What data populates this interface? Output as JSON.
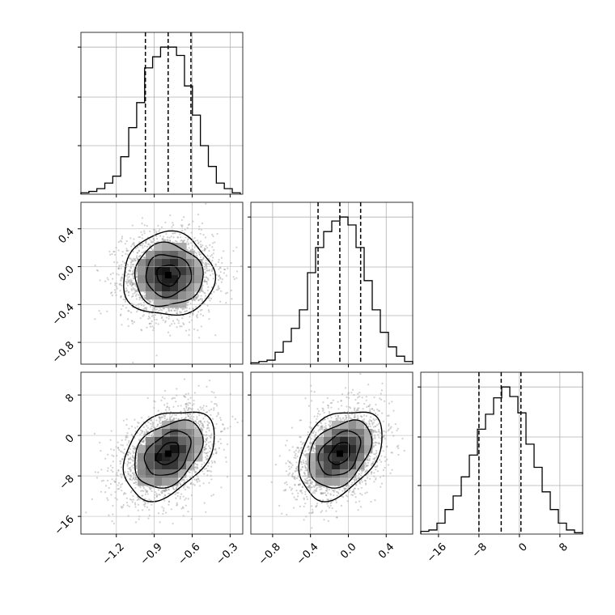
{
  "colors": {
    "background": "#ffffff",
    "frame": "#000000",
    "grid": "#b0b0b0",
    "scatter": "#9a9a9a",
    "contour": "#000000",
    "quantile_line": "#000000",
    "density_scale": [
      "#ffffff",
      "#000000"
    ]
  },
  "chart_data": {
    "type": "corner",
    "grid": true,
    "parameters": [
      {
        "range": [
          -1.48,
          -0.2
        ],
        "ticks": [
          -1.2,
          -0.9,
          -0.6,
          -0.3
        ],
        "tick_labels": [
          "−1.2",
          "−0.9",
          "−0.6",
          "−0.3"
        ],
        "quantiles": [
          -0.97,
          -0.79,
          -0.61
        ],
        "histogram": {
          "edges": [
            -1.48,
            -1.417,
            -1.354,
            -1.291,
            -1.228,
            -1.165,
            -1.102,
            -1.039,
            -0.976,
            -0.913,
            -0.85,
            -0.787,
            -0.724,
            -0.661,
            -0.598,
            -0.535,
            -0.472,
            -0.409,
            -0.346,
            -0.283,
            -0.22
          ],
          "counts": [
            1,
            2,
            4,
            8,
            13,
            27,
            48,
            66,
            91,
            99,
            106,
            106,
            100,
            78,
            57,
            35,
            20,
            8,
            4,
            1
          ]
        }
      },
      {
        "range": [
          -1.03,
          0.68
        ],
        "ticks": [
          -0.8,
          -0.4,
          0.0,
          0.4
        ],
        "tick_labels": [
          "−0.8",
          "−0.4",
          "0.0",
          "0.4"
        ],
        "quantiles": [
          -0.32,
          -0.09,
          0.13
        ],
        "histogram": {
          "edges": [
            -1.03,
            -0.9445,
            -0.859,
            -0.7735,
            -0.688,
            -0.6025,
            -0.517,
            -0.4315,
            -0.346,
            -0.2605,
            -0.175,
            -0.0895,
            -0.004,
            0.0815,
            0.167,
            0.2525,
            0.338,
            0.4235,
            0.509,
            0.5945,
            0.68
          ],
          "counts": [
            1,
            2,
            3,
            9,
            17,
            27,
            41,
            69,
            88,
            100,
            108,
            111,
            105,
            88,
            63,
            41,
            24,
            13,
            6,
            2
          ]
        }
      },
      {
        "range": [
          -19.5,
          12.5
        ],
        "ticks": [
          -16,
          -8,
          0,
          8
        ],
        "tick_labels": [
          "−16",
          "−8",
          "0",
          "8"
        ],
        "quantiles": [
          -8.0,
          -3.6,
          0.3
        ],
        "histogram": {
          "edges": [
            -19.5,
            -17.9,
            -16.3,
            -14.7,
            -13.1,
            -11.5,
            -9.9,
            -8.3,
            -6.7,
            -5.1,
            -3.5,
            -1.9,
            -0.3,
            1.3,
            2.9,
            4.5,
            6.1,
            7.7,
            9.3,
            10.9,
            12.5
          ],
          "counts": [
            2,
            3,
            8,
            18,
            28,
            42,
            58,
            77,
            88,
            100,
            108,
            101,
            89,
            66,
            49,
            31,
            18,
            8,
            3,
            1
          ]
        }
      }
    ],
    "pairs": [
      {
        "x_param": 0,
        "y_param": 1,
        "center": [
          -0.79,
          -0.09
        ],
        "sd": [
          0.18,
          0.22
        ],
        "rho": 0.0,
        "n_points": 2600
      },
      {
        "x_param": 0,
        "y_param": 2,
        "center": [
          -0.79,
          -3.6
        ],
        "sd": [
          0.18,
          4.4
        ],
        "rho": 0.35,
        "n_points": 2600
      },
      {
        "x_param": 1,
        "y_param": 2,
        "center": [
          -0.09,
          -3.6
        ],
        "sd": [
          0.22,
          4.4
        ],
        "rho": 0.35,
        "n_points": 2600
      }
    ],
    "contour_levels_sigma": [
      0.5,
      1.0,
      1.5,
      2.0
    ]
  }
}
